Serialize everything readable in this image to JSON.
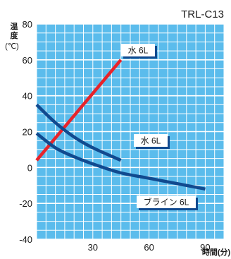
{
  "chart_data": {
    "type": "line",
    "title": "TRL-C13",
    "ylabel_chars": [
      "温",
      "度"
    ],
    "yunit": "(℃)",
    "xlabel": "時間(分)",
    "xlim": [
      0,
      100
    ],
    "ylim": [
      -40,
      80
    ],
    "xticks": [
      30,
      60,
      90
    ],
    "yticks": [
      80,
      60,
      40,
      20,
      0,
      -20,
      -40
    ],
    "grid": true,
    "colors": {
      "background": "#5bbcec",
      "grid": "#ffffff",
      "red": "#e8232a",
      "blue": "#114a8f"
    },
    "series": [
      {
        "name": "水 6L",
        "color": "#e8232a",
        "x": [
          0,
          45
        ],
        "y": [
          4,
          60
        ]
      },
      {
        "name": "水 6L",
        "color": "#114a8f",
        "x": [
          0,
          10,
          20,
          30,
          45
        ],
        "y": [
          35,
          25,
          17,
          11,
          4
        ]
      },
      {
        "name": "ブライン 6L",
        "color": "#114a8f",
        "x": [
          0,
          10,
          20,
          30,
          45,
          60,
          75,
          90
        ],
        "y": [
          19,
          11,
          6,
          2,
          -3,
          -6,
          -9,
          -12
        ]
      }
    ],
    "annotations": [
      {
        "text": "水 6L",
        "series": 0
      },
      {
        "text": "水 6L",
        "series": 1
      },
      {
        "text": "ブライン 6L",
        "series": 2
      }
    ]
  }
}
